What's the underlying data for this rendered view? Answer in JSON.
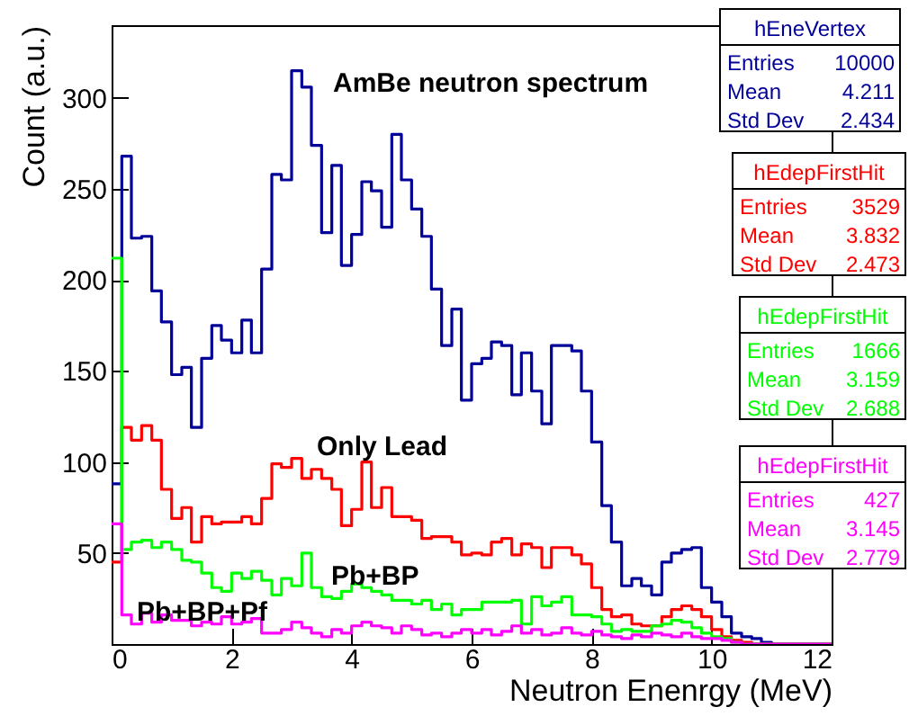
{
  "chart_data": {
    "type": "histogram",
    "xlabel": "Neutron Enenrgy (MeV)",
    "ylabel": "Count (a.u.)",
    "bins": [
      0,
      0.17,
      0.33,
      0.5,
      0.67,
      0.83,
      1,
      1.17,
      1.33,
      1.5,
      1.67,
      1.83,
      2,
      2.17,
      2.33,
      2.5,
      2.67,
      2.83,
      3,
      3.17,
      3.33,
      3.5,
      3.67,
      3.83,
      4,
      4.17,
      4.33,
      4.5,
      4.67,
      4.83,
      5,
      5.17,
      5.33,
      5.5,
      5.67,
      5.83,
      6,
      6.17,
      6.33,
      6.5,
      6.67,
      6.83,
      7,
      7.17,
      7.33,
      7.5,
      7.67,
      7.83,
      8,
      8.17,
      8.33,
      8.5,
      8.67,
      8.83,
      9,
      9.17,
      9.33,
      9.5,
      9.67,
      9.83,
      10,
      10.17,
      10.33,
      10.5,
      10.67,
      10.83,
      11,
      11.17,
      11.33,
      11.5,
      11.67,
      11.83,
      12
    ],
    "series": [
      {
        "name": "AmBe neutron spectrum",
        "color": "#000099",
        "values": [
          88,
          268,
          223,
          224,
          194,
          177,
          148,
          152,
          119,
          157,
          175,
          167,
          160,
          178,
          160,
          206,
          258,
          255,
          315,
          306,
          274,
          226,
          263,
          208,
          225,
          254,
          249,
          229,
          280,
          255,
          239,
          224,
          195,
          164,
          184,
          134,
          154,
          157,
          166,
          164,
          137,
          160,
          139,
          121,
          164,
          164,
          161,
          139,
          111,
          76,
          56,
          32,
          36,
          32,
          27,
          45,
          50,
          52,
          53,
          31,
          23,
          15,
          6,
          4,
          3,
          1,
          0,
          0,
          0,
          0,
          0,
          0
        ]
      },
      {
        "name": "Only Lead",
        "color": "#ff0000",
        "values": [
          45,
          119,
          112,
          120,
          112,
          85,
          69,
          75,
          56,
          70,
          66,
          67,
          67,
          70,
          66,
          80,
          99,
          97,
          102,
          91,
          96,
          91,
          85,
          65,
          74,
          100,
          75,
          86,
          70,
          70,
          68,
          58,
          59,
          59,
          56,
          49,
          50,
          49,
          56,
          58,
          49,
          55,
          53,
          42,
          53,
          53,
          49,
          44,
          31,
          19,
          15,
          16,
          11,
          10,
          10,
          15,
          19,
          21,
          19,
          15,
          8,
          4,
          2,
          1,
          0,
          0,
          0,
          0,
          0,
          0,
          0,
          0
        ]
      },
      {
        "name": "Pb+BP",
        "color": "#00ff00",
        "values": [
          212,
          52,
          56,
          57,
          53,
          56,
          52,
          46,
          45,
          39,
          31,
          29,
          39,
          36,
          40,
          35,
          27,
          36,
          32,
          50,
          31,
          26,
          25,
          29,
          33,
          31,
          29,
          27,
          24,
          24,
          22,
          24,
          19,
          22,
          16,
          19,
          19,
          23,
          23,
          23,
          24,
          11,
          26,
          21,
          23,
          26,
          16,
          16,
          15,
          11,
          7,
          8,
          7,
          7,
          10,
          11,
          13,
          12,
          9,
          6,
          4,
          3,
          1,
          0,
          0,
          0,
          0,
          0,
          0,
          0,
          0,
          0
        ]
      },
      {
        "name": "Pb+BP+Pf",
        "color": "#ff00ff",
        "values": [
          66,
          16,
          11,
          17,
          12,
          16,
          13,
          13,
          10,
          12,
          11,
          15,
          11,
          12,
          14,
          6,
          6,
          8,
          12,
          9,
          6,
          4,
          8,
          6,
          10,
          12,
          10,
          9,
          6,
          10,
          8,
          5,
          6,
          4,
          6,
          8,
          6,
          8,
          5,
          7,
          10,
          6,
          8,
          5,
          6,
          9,
          6,
          5,
          7,
          5,
          4,
          3,
          5,
          4,
          6,
          5,
          4,
          6,
          4,
          3,
          3,
          2,
          1,
          0,
          0,
          0,
          0,
          0,
          0,
          0,
          0,
          0
        ]
      }
    ],
    "xlim": [
      0,
      12
    ],
    "xticks": [
      0,
      2,
      4,
      6,
      8,
      10,
      12
    ],
    "ylim": [
      0,
      340
    ],
    "yticks": [
      50,
      100,
      150,
      200,
      250,
      300
    ],
    "annotations": [
      "hEneVertex",
      "Entries",
      "10000",
      "Mean",
      "4.211",
      "Std Dev",
      "2.434",
      "hEdepFirstHit",
      "Entries",
      "3529",
      "Mean",
      "3.832",
      "Std Dev",
      "2.473",
      "hEdepFirstHit",
      "Entries",
      "1666",
      "Mean",
      "3.159",
      "Std Dev",
      "2.688",
      "hEdepFirstHit",
      "Entries",
      "427",
      "Mean",
      "3.145",
      "Std Dev",
      "2.779"
    ]
  }
}
